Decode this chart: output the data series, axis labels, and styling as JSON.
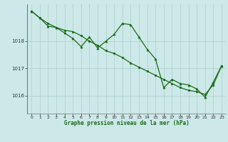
{
  "title": "Graphe pression niveau de la mer (hPa)",
  "background_color": "#cde8e8",
  "grid_color": "#b0d4cc",
  "line_color": "#1a6b1a",
  "marker_color": "#1a6b1a",
  "xlim": [
    -0.5,
    23.5
  ],
  "ylim": [
    1015.35,
    1019.35
  ],
  "yticks": [
    1016,
    1017,
    1018
  ],
  "xticks": [
    0,
    1,
    2,
    3,
    4,
    5,
    6,
    7,
    8,
    9,
    10,
    11,
    12,
    13,
    14,
    15,
    16,
    17,
    18,
    19,
    20,
    21,
    22,
    23
  ],
  "series1": {
    "x": [
      0,
      1,
      2,
      3,
      4,
      5,
      6,
      7,
      8,
      9,
      10,
      11,
      12,
      13,
      14,
      15,
      16,
      17,
      18,
      19,
      20,
      21,
      22,
      23
    ],
    "y": [
      1019.1,
      1018.85,
      1018.65,
      1018.5,
      1018.4,
      1018.35,
      1018.2,
      1018.0,
      1017.85,
      1017.65,
      1017.55,
      1017.4,
      1017.2,
      1017.05,
      1016.9,
      1016.75,
      1016.6,
      1016.45,
      1016.3,
      1016.2,
      1016.15,
      1016.05,
      1016.4,
      1017.1
    ]
  },
  "series2": {
    "x": [
      0,
      1,
      2,
      3,
      4,
      5,
      6,
      7,
      8,
      9,
      10,
      11,
      12,
      13,
      14,
      15,
      16,
      17,
      18,
      19,
      20,
      21,
      22,
      23
    ],
    "y": [
      1019.1,
      1018.85,
      1018.55,
      1018.5,
      1018.3,
      1018.1,
      1017.8,
      1018.15,
      1017.75,
      1018.0,
      1018.25,
      1018.65,
      1018.6,
      1018.15,
      1017.7,
      1017.35,
      1016.3,
      1016.6,
      1016.45,
      1016.4,
      1016.25,
      1015.95,
      1016.5,
      1017.1
    ]
  }
}
